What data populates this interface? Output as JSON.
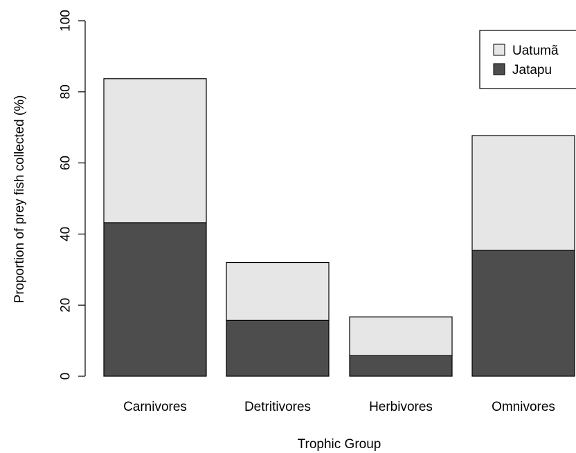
{
  "chart_data": {
    "type": "bar",
    "stacked": true,
    "categories": [
      "Carnivores",
      "Detritivores",
      "Herbivores",
      "Omnivores"
    ],
    "series": [
      {
        "name": "Jatapu",
        "color": "#4d4d4d",
        "values": [
          43.2,
          15.7,
          5.8,
          35.4
        ]
      },
      {
        "name": "Uatumã",
        "color": "#e6e6e6",
        "values": [
          40.5,
          16.3,
          10.9,
          32.3
        ]
      }
    ],
    "xlabel": "Trophic Group",
    "ylabel": "Proportion of prey fish collected (%)",
    "ylim": [
      0,
      100
    ],
    "yticks": [
      0,
      20,
      40,
      60,
      80,
      100
    ],
    "grid": false,
    "legend": {
      "placement": "top-right",
      "entries": [
        "Uatumã",
        "Jatapu"
      ]
    }
  }
}
